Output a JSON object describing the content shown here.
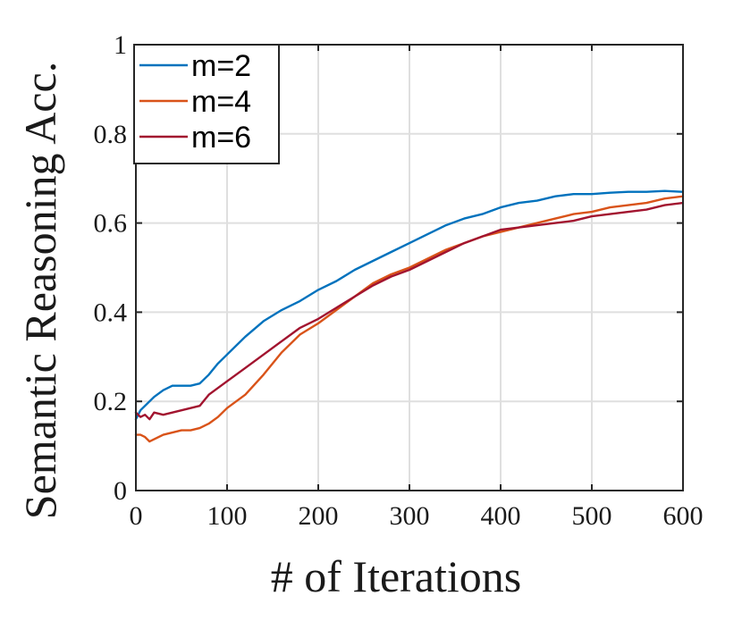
{
  "chart_data": {
    "type": "line",
    "title": "",
    "xlabel": "# of Iterations",
    "ylabel": "Semantic Reasoning Acc.",
    "xlim": [
      0,
      600
    ],
    "ylim": [
      0,
      1
    ],
    "xticks": [
      0,
      100,
      200,
      300,
      400,
      500,
      600
    ],
    "yticks": [
      0,
      0.2,
      0.4,
      0.6,
      0.8,
      1
    ],
    "xtick_labels": [
      "0",
      "100",
      "200",
      "300",
      "400",
      "500",
      "600"
    ],
    "ytick_labels": [
      "0",
      "0.2",
      "0.4",
      "0.6",
      "0.8",
      "1"
    ],
    "grid": true,
    "legend_position": "top-left",
    "series": [
      {
        "name": "m=2",
        "color": "#0072BD",
        "x": [
          0,
          5,
          10,
          20,
          30,
          40,
          50,
          60,
          70,
          80,
          90,
          100,
          120,
          140,
          160,
          180,
          200,
          220,
          240,
          260,
          280,
          300,
          320,
          340,
          360,
          380,
          400,
          420,
          440,
          460,
          480,
          500,
          520,
          540,
          560,
          580,
          600
        ],
        "y": [
          0.16,
          0.18,
          0.19,
          0.21,
          0.225,
          0.235,
          0.235,
          0.235,
          0.24,
          0.26,
          0.285,
          0.305,
          0.345,
          0.38,
          0.405,
          0.425,
          0.45,
          0.47,
          0.495,
          0.515,
          0.535,
          0.555,
          0.575,
          0.595,
          0.61,
          0.62,
          0.635,
          0.645,
          0.65,
          0.66,
          0.665,
          0.665,
          0.668,
          0.67,
          0.67,
          0.672,
          0.67
        ]
      },
      {
        "name": "m=4",
        "color": "#D95319",
        "x": [
          0,
          5,
          10,
          15,
          20,
          30,
          40,
          50,
          60,
          70,
          80,
          90,
          100,
          120,
          140,
          160,
          180,
          200,
          220,
          240,
          260,
          280,
          300,
          320,
          340,
          360,
          380,
          400,
          420,
          440,
          460,
          480,
          500,
          520,
          540,
          560,
          580,
          600
        ],
        "y": [
          0.125,
          0.125,
          0.12,
          0.11,
          0.115,
          0.125,
          0.13,
          0.135,
          0.135,
          0.14,
          0.15,
          0.165,
          0.185,
          0.215,
          0.26,
          0.31,
          0.35,
          0.375,
          0.405,
          0.435,
          0.465,
          0.485,
          0.5,
          0.52,
          0.54,
          0.555,
          0.57,
          0.58,
          0.59,
          0.6,
          0.61,
          0.62,
          0.625,
          0.635,
          0.64,
          0.645,
          0.655,
          0.66
        ]
      },
      {
        "name": "m=6",
        "color": "#A2142F",
        "x": [
          0,
          5,
          10,
          15,
          20,
          30,
          40,
          50,
          60,
          70,
          80,
          90,
          100,
          120,
          140,
          160,
          180,
          200,
          220,
          240,
          260,
          280,
          300,
          320,
          340,
          360,
          380,
          400,
          420,
          440,
          460,
          480,
          500,
          520,
          540,
          560,
          580,
          600
        ],
        "y": [
          0.175,
          0.165,
          0.17,
          0.16,
          0.175,
          0.17,
          0.175,
          0.18,
          0.185,
          0.19,
          0.215,
          0.23,
          0.245,
          0.275,
          0.305,
          0.335,
          0.365,
          0.385,
          0.41,
          0.435,
          0.46,
          0.48,
          0.495,
          0.515,
          0.535,
          0.555,
          0.57,
          0.585,
          0.59,
          0.595,
          0.6,
          0.605,
          0.615,
          0.62,
          0.625,
          0.63,
          0.64,
          0.645
        ]
      }
    ]
  }
}
